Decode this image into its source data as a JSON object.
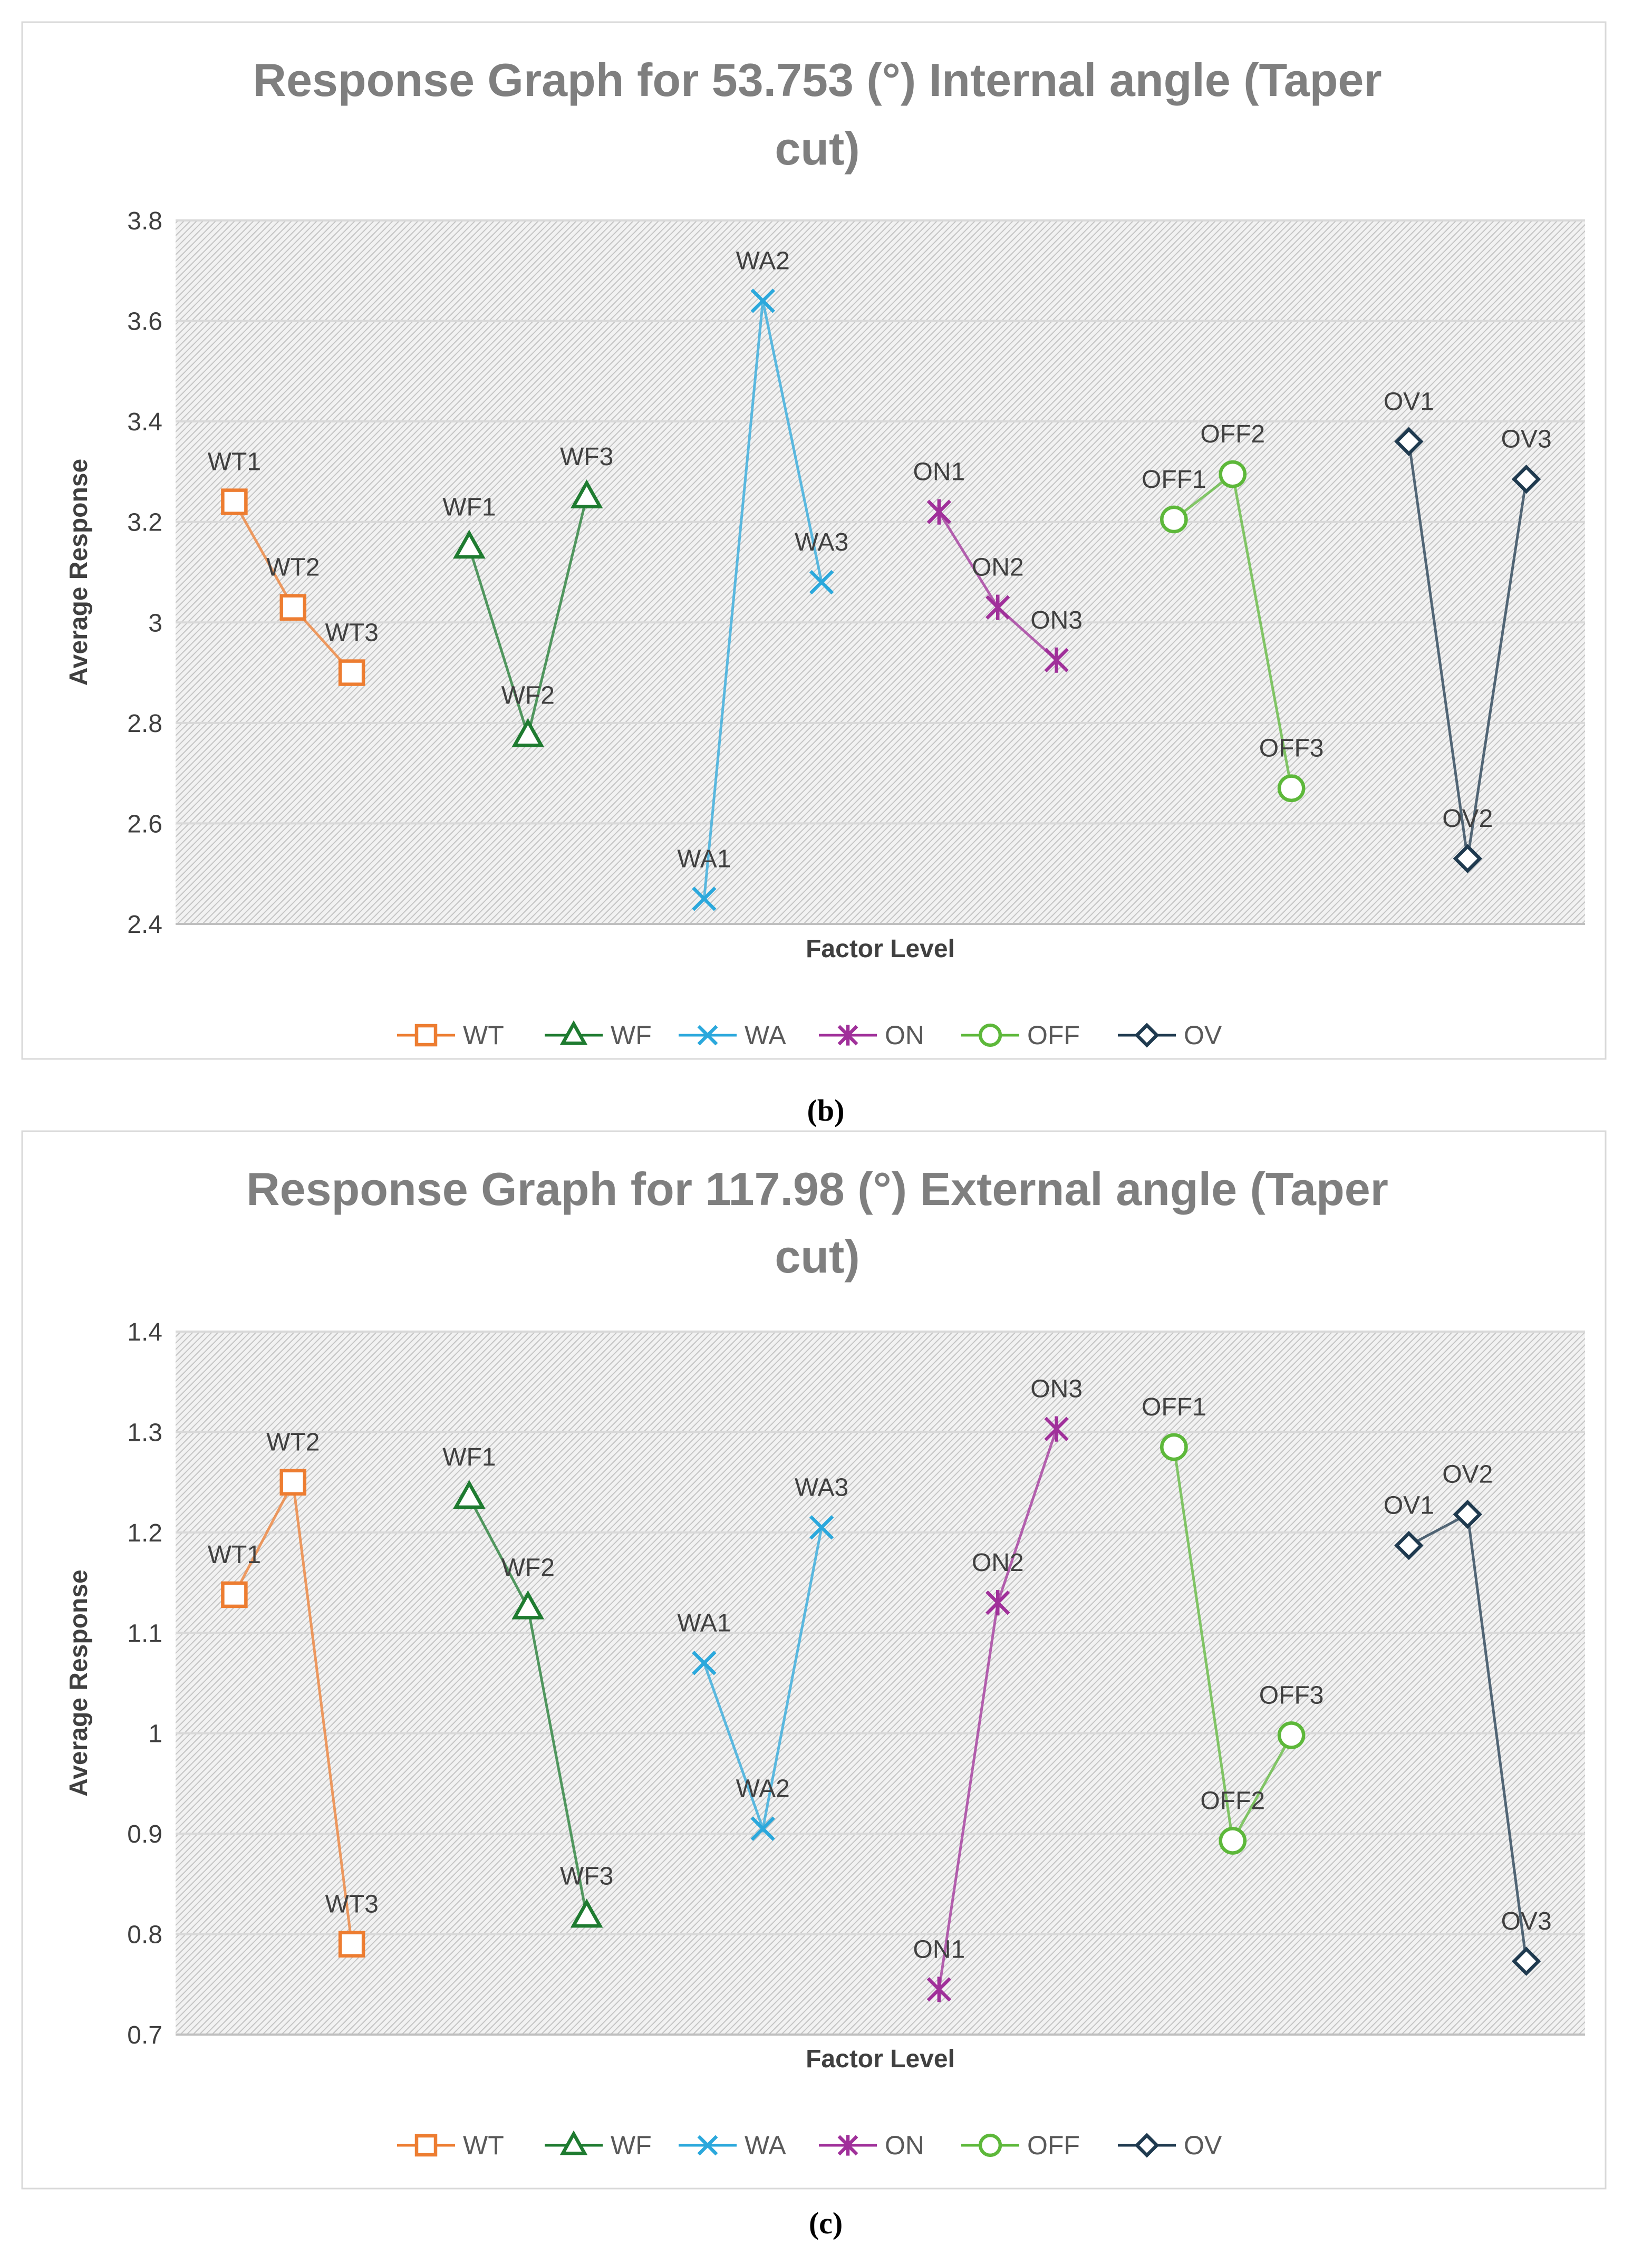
{
  "chart_data": [
    {
      "type": "line",
      "title": "Response Graph for 53.753 (°) Internal angle (Taper cut)",
      "title_lines": [
        "Response Graph for 53.753 (°) Internal angle (Taper",
        "cut)"
      ],
      "xlabel": "Factor Level",
      "ylabel": "Average Response",
      "ylim": [
        2.4,
        3.8
      ],
      "yticks": [
        "2.4",
        "2.6",
        "2.8",
        "3",
        "3.2",
        "3.4",
        "3.6",
        "3.8"
      ],
      "grid": true,
      "legend_position": "bottom",
      "caption": "(b)",
      "series": [
        {
          "name": "WT",
          "color": "#ED7D31",
          "marker": "square",
          "labels": [
            "WT1",
            "WT2",
            "WT3"
          ],
          "values": [
            3.24,
            3.03,
            2.9
          ]
        },
        {
          "name": "WF",
          "color": "#1E7B30",
          "marker": "triangle",
          "labels": [
            "WF1",
            "WF2",
            "WF3"
          ],
          "values": [
            3.15,
            2.775,
            3.25
          ]
        },
        {
          "name": "WA",
          "color": "#2BA8DC",
          "marker": "x",
          "labels": [
            "WA1",
            "WA2",
            "WA3"
          ],
          "values": [
            2.45,
            3.64,
            3.08
          ]
        },
        {
          "name": "ON",
          "color": "#A0309A",
          "marker": "star",
          "labels": [
            "ON1",
            "ON2",
            "ON3"
          ],
          "values": [
            3.22,
            3.03,
            2.925
          ]
        },
        {
          "name": "OFF",
          "color": "#5DB83A",
          "marker": "circle",
          "labels": [
            "OFF1",
            "OFF2",
            "OFF3"
          ],
          "values": [
            3.205,
            3.295,
            2.67
          ]
        },
        {
          "name": "OV",
          "color": "#1F3A4F",
          "marker": "diamond",
          "labels": [
            "OV1",
            "OV2",
            "OV3"
          ],
          "values": [
            3.36,
            2.53,
            3.285
          ]
        }
      ]
    },
    {
      "type": "line",
      "title": "Response Graph for 117.98 (°) External angle (Taper cut)",
      "title_lines": [
        "Response Graph for 117.98 (°) External angle (Taper",
        "cut)"
      ],
      "xlabel": "Factor Level",
      "ylabel": "Average Response",
      "ylim": [
        0.7,
        1.4
      ],
      "yticks": [
        "0.7",
        "0.8",
        "0.9",
        "1",
        "1.1",
        "1.2",
        "1.3",
        "1.4"
      ],
      "grid": true,
      "legend_position": "bottom",
      "caption": "(c)",
      "series": [
        {
          "name": "WT",
          "color": "#ED7D31",
          "marker": "square",
          "labels": [
            "WT1",
            "WT2",
            "WT3"
          ],
          "values": [
            1.138,
            1.25,
            0.79
          ]
        },
        {
          "name": "WF",
          "color": "#1E7B30",
          "marker": "triangle",
          "labels": [
            "WF1",
            "WF2",
            "WF3"
          ],
          "values": [
            1.235,
            1.125,
            0.818
          ]
        },
        {
          "name": "WA",
          "color": "#2BA8DC",
          "marker": "x",
          "labels": [
            "WA1",
            "WA2",
            "WA3"
          ],
          "values": [
            1.07,
            0.905,
            1.205
          ]
        },
        {
          "name": "ON",
          "color": "#A0309A",
          "marker": "star",
          "labels": [
            "ON1",
            "ON2",
            "ON3"
          ],
          "values": [
            0.745,
            1.13,
            1.303
          ]
        },
        {
          "name": "OFF",
          "color": "#5DB83A",
          "marker": "circle",
          "labels": [
            "OFF1",
            "OFF2",
            "OFF3"
          ],
          "values": [
            1.285,
            0.893,
            0.998
          ]
        },
        {
          "name": "OV",
          "color": "#1F3A4F",
          "marker": "diamond",
          "labels": [
            "OV1",
            "OV2",
            "OV3"
          ],
          "values": [
            1.187,
            1.218,
            0.773
          ]
        }
      ]
    }
  ]
}
